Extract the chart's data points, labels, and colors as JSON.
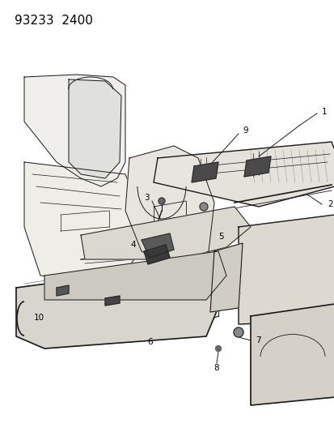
{
  "header_text": "93233  2400",
  "background_color": "#ffffff",
  "line_color": "#1a1a1a",
  "figsize": [
    4.14,
    5.33
  ],
  "dpi": 100,
  "label_fontsize": 7.5
}
